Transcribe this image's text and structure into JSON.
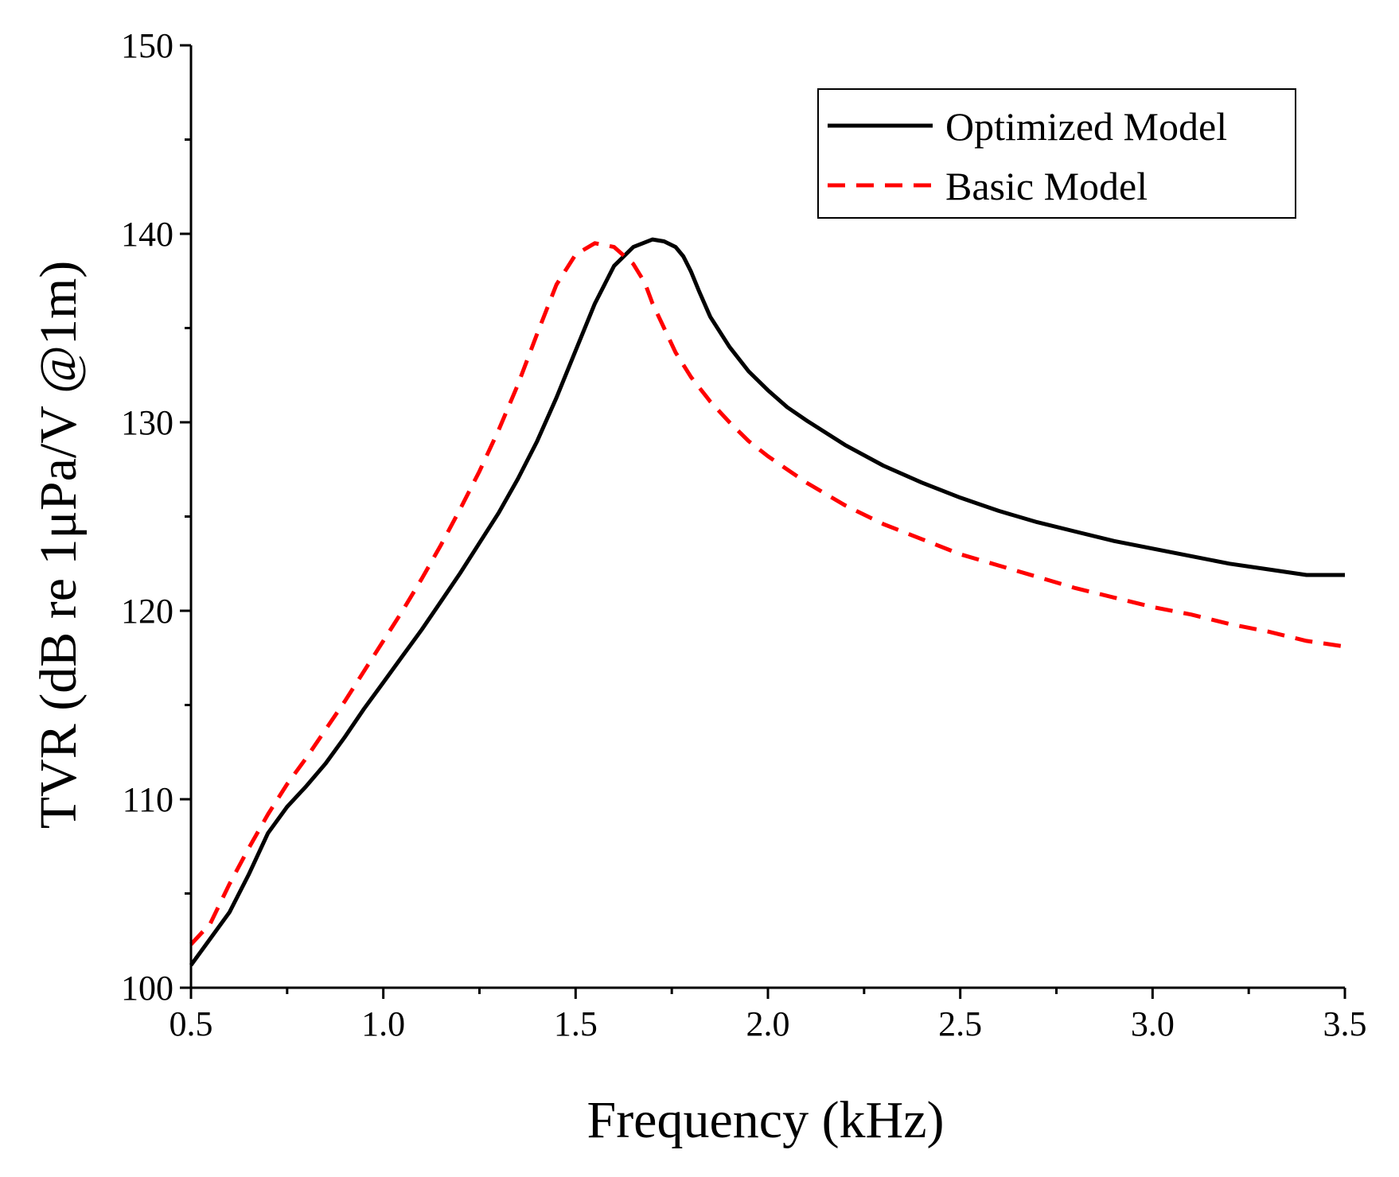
{
  "chart_data": {
    "type": "line",
    "title": "",
    "xlabel": "Frequency (kHz)",
    "ylabel": "TVR (dB re 1μPa/V @1m)",
    "xlim": [
      0.5,
      3.5
    ],
    "ylim": [
      100,
      150
    ],
    "xticks": [
      0.5,
      1.0,
      1.5,
      2.0,
      2.5,
      3.0,
      3.5
    ],
    "xtick_labels": [
      "0.5",
      "1.0",
      "1.5",
      "2.0",
      "2.5",
      "3.0",
      "3.5"
    ],
    "yticks": [
      100,
      110,
      120,
      130,
      140,
      150
    ],
    "ytick_labels": [
      "100",
      "110",
      "120",
      "130",
      "140",
      "150"
    ],
    "grid": false,
    "legend_position": "top-right",
    "series": [
      {
        "name": "Optimized Model",
        "color": "#000000",
        "style": "solid",
        "x": [
          0.5,
          0.55,
          0.6,
          0.65,
          0.7,
          0.75,
          0.8,
          0.85,
          0.9,
          0.95,
          1.0,
          1.05,
          1.1,
          1.15,
          1.2,
          1.25,
          1.3,
          1.35,
          1.4,
          1.45,
          1.5,
          1.55,
          1.6,
          1.65,
          1.7,
          1.73,
          1.76,
          1.78,
          1.8,
          1.82,
          1.85,
          1.9,
          1.95,
          2.0,
          2.05,
          2.1,
          2.2,
          2.3,
          2.4,
          2.5,
          2.6,
          2.7,
          2.8,
          2.9,
          3.0,
          3.1,
          3.2,
          3.3,
          3.4,
          3.5
        ],
        "y": [
          101.2,
          102.6,
          104.0,
          106.0,
          108.2,
          109.6,
          110.7,
          111.9,
          113.3,
          114.8,
          116.2,
          117.6,
          119.0,
          120.5,
          122.0,
          123.6,
          125.2,
          127.0,
          129.0,
          131.3,
          133.8,
          136.3,
          138.3,
          139.3,
          139.7,
          139.6,
          139.3,
          138.8,
          138.0,
          137.0,
          135.6,
          134.0,
          132.7,
          131.7,
          130.8,
          130.1,
          128.8,
          127.7,
          126.8,
          126.0,
          125.3,
          124.7,
          124.2,
          123.7,
          123.3,
          122.9,
          122.5,
          122.2,
          121.9,
          121.9
        ],
        "y_shifted_note": ""
      },
      {
        "name": "Basic Model",
        "color": "#ff0000",
        "style": "dashed",
        "x": [
          0.5,
          0.55,
          0.6,
          0.65,
          0.7,
          0.75,
          0.8,
          0.85,
          0.9,
          0.95,
          1.0,
          1.05,
          1.1,
          1.15,
          1.2,
          1.25,
          1.3,
          1.35,
          1.4,
          1.45,
          1.5,
          1.55,
          1.6,
          1.65,
          1.68,
          1.7,
          1.73,
          1.76,
          1.8,
          1.85,
          1.9,
          1.95,
          2.0,
          2.1,
          2.2,
          2.3,
          2.4,
          2.5,
          2.6,
          2.7,
          2.8,
          2.9,
          3.0,
          3.1,
          3.2,
          3.3,
          3.4,
          3.5
        ],
        "y": [
          102.3,
          103.4,
          105.5,
          107.4,
          109.2,
          110.8,
          112.2,
          113.7,
          115.2,
          116.8,
          118.4,
          120.0,
          121.7,
          123.5,
          125.4,
          127.4,
          129.6,
          132.0,
          134.7,
          137.3,
          138.9,
          139.5,
          139.3,
          138.4,
          137.4,
          136.3,
          135.0,
          133.7,
          132.4,
          131.1,
          130.0,
          129.0,
          128.2,
          126.8,
          125.6,
          124.6,
          123.8,
          123.0,
          122.4,
          121.8,
          121.2,
          120.7,
          120.2,
          119.8,
          119.3,
          118.9,
          118.4,
          118.1
        ]
      }
    ]
  }
}
